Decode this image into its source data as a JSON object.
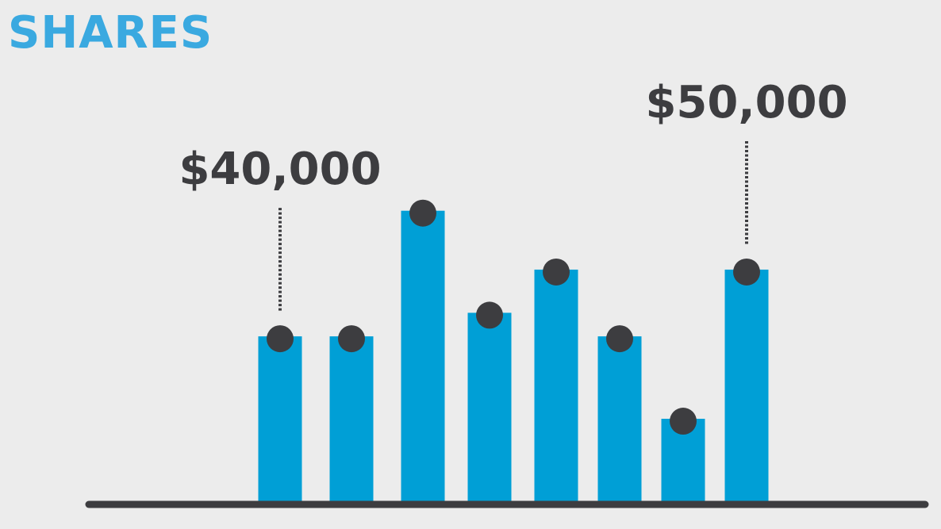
{
  "title": "SHARES",
  "chart_data": {
    "type": "bar",
    "categories": [
      "",
      "",
      "",
      "",
      "",
      "",
      "",
      ""
    ],
    "values": [
      42,
      42,
      74,
      48,
      59,
      42,
      21,
      59
    ],
    "ylim": [
      0,
      100
    ],
    "grid": false,
    "bar_color": "#009fd6",
    "marker_color": "#3d3d40",
    "axis_color": "#3d3d40",
    "annotations": [
      {
        "index": 0,
        "text": "$40,000"
      },
      {
        "index": 7,
        "text": "$50,000"
      }
    ]
  }
}
